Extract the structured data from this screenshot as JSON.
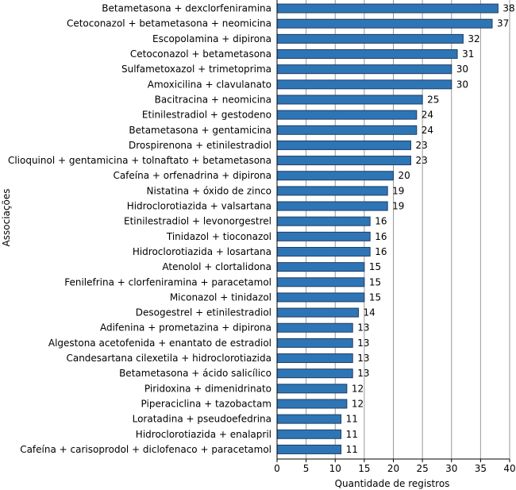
{
  "chart_data": {
    "type": "bar",
    "orientation": "horizontal",
    "title": "",
    "xlabel": "Quantidade de registros",
    "ylabel": "Associações",
    "xlim": [
      0,
      40
    ],
    "xticks": [
      0,
      5,
      10,
      15,
      20,
      25,
      30,
      35,
      40
    ],
    "grid": true,
    "bar_color": "#2e75b6",
    "bar_edge_color": "#1f3d63",
    "grid_color": "#999999",
    "categories": [
      "Betametasona + dexclorfeniramina",
      "Cetoconazol + betametasona + neomicina",
      "Escopolamina + dipirona",
      "Cetoconazol + betametasona",
      "Sulfametoxazol + trimetoprima",
      "Amoxicilina + clavulanato",
      "Bacitracina + neomicina",
      "Etinilestradiol + gestodeno",
      "Betametasona + gentamicina",
      "Drospirenona + etinilestradiol",
      "Clioquinol + gentamicina + tolnaftato + betametasona",
      "Cafeína + orfenadrina + dipirona",
      "Nistatina + óxido de zinco",
      "Hidroclorotiazida + valsartana",
      "Etinilestradiol + levonorgestrel",
      "Tinidazol + tioconazol",
      "Hidroclorotiazida + losartana",
      "Atenolol + clortalidona",
      "Fenilefrina + clorfeniramina + paracetamol",
      "Miconazol + tinidazol",
      "Desogestrel + etinilestradiol",
      "Adifenina + prometazina + dipirona",
      "Algestona acetofenida + enantato de estradiol",
      "Candesartana cilexetila + hidroclorotiazida",
      "Betametasona + ácido salicílico",
      "Piridoxina + dimenidrinato",
      "Piperaciclina + tazobactam",
      "Loratadina + pseudoefedrina",
      "Hidroclorotiazida + enalapril",
      "Cafeína + carisoprodol + diclofenaco + paracetamol"
    ],
    "values": [
      38,
      37,
      32,
      31,
      30,
      30,
      25,
      24,
      24,
      23,
      23,
      20,
      19,
      19,
      16,
      16,
      16,
      15,
      15,
      15,
      14,
      13,
      13,
      13,
      13,
      12,
      12,
      11,
      11,
      11
    ]
  }
}
